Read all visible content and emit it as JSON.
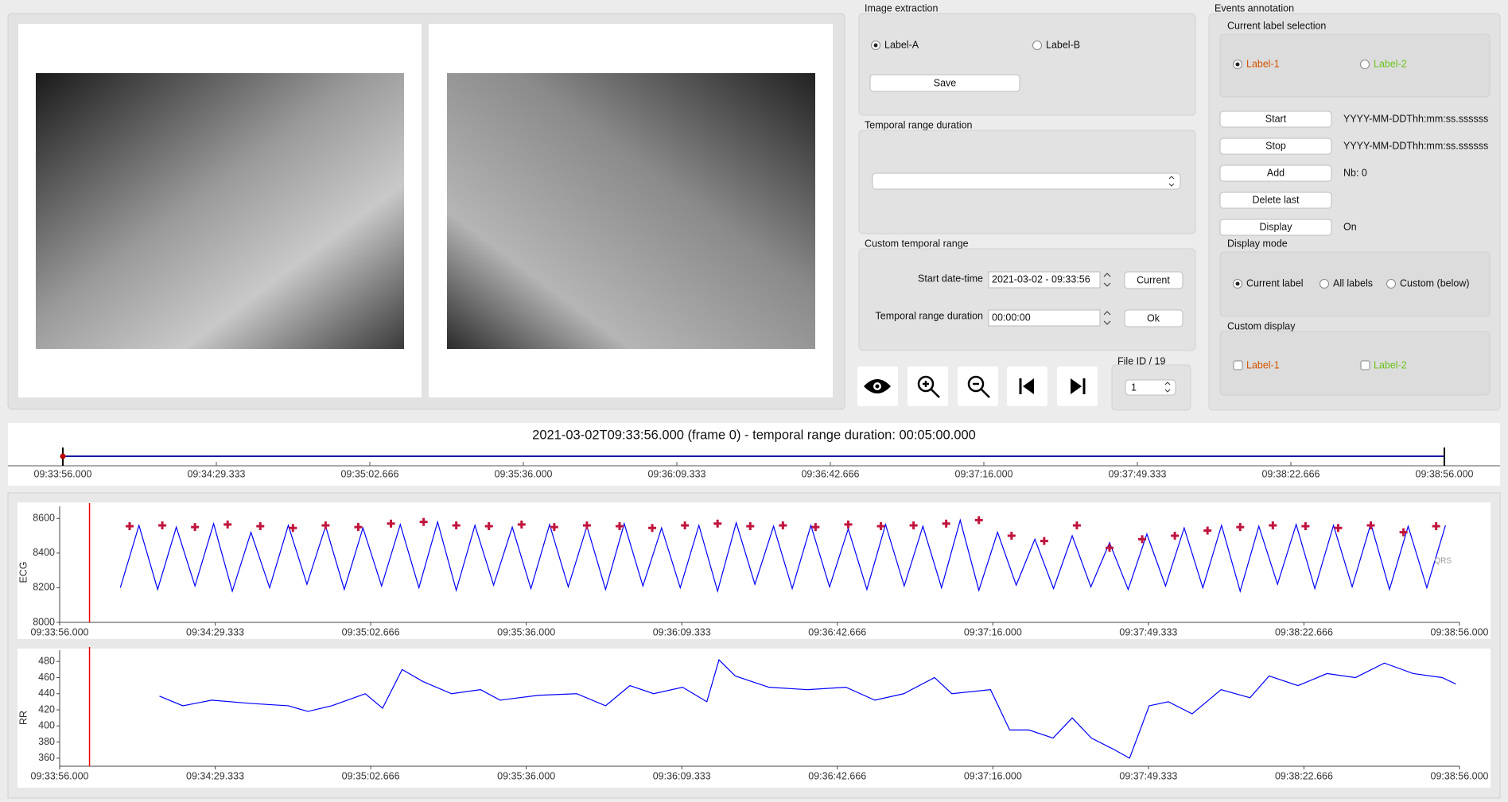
{
  "image_extraction": {
    "title": "Image extraction",
    "options": [
      "Label-A",
      "Label-B"
    ],
    "save": "Save"
  },
  "temporal_range_duration": {
    "title": "Temporal range duration"
  },
  "custom_temporal_range": {
    "title": "Custom temporal range",
    "start_label": "Start date-time",
    "start_value": "2021-03-02 - 09:33:56",
    "current": "Current",
    "duration_label": "Temporal range duration",
    "duration_value": "00:00:00",
    "ok": "Ok"
  },
  "file_id": {
    "label": "File ID / 19",
    "value": "1"
  },
  "events_annotation": {
    "title": "Events annotation",
    "current_label_selection": {
      "title": "Current label selection",
      "options": [
        "Label-1",
        "Label-2"
      ]
    },
    "buttons": [
      "Start",
      "Stop",
      "Add",
      "Delete last",
      "Display"
    ],
    "start_time": "YYYY-MM-DDThh:mm:ss.ssssss",
    "stop_time": "YYYY-MM-DDThh:mm:ss.ssssss",
    "count": "Nb: 0",
    "display_state": "On",
    "display_mode": {
      "title": "Display mode",
      "options": [
        "Current label",
        "All labels",
        "Custom (below)"
      ]
    },
    "custom_display": {
      "title": "Custom display",
      "options": [
        "Label-1",
        "Label-2"
      ]
    }
  },
  "timeline": {
    "title": "2021-03-02T09:33:56.000 (frame 0) - temporal range duration: 00:05:00.000",
    "xlim": [
      0,
      300
    ],
    "xticks": [
      {
        "value": 0,
        "label": "09:33:56.000"
      },
      {
        "value": 33.333,
        "label": "09:34:29.333"
      },
      {
        "value": 66.666,
        "label": "09:35:02.666"
      },
      {
        "value": 100,
        "label": "09:35:36.000"
      },
      {
        "value": 133.333,
        "label": "09:36:09.333"
      },
      {
        "value": 166.666,
        "label": "09:36:42.666"
      },
      {
        "value": 200,
        "label": "09:37:16.000"
      },
      {
        "value": 233.333,
        "label": "09:37:49.333"
      },
      {
        "value": 266.666,
        "label": "09:38:22.666"
      },
      {
        "value": 300,
        "label": "09:38:56.000"
      }
    ]
  },
  "chart_data": [
    {
      "type": "line",
      "ylabel": "ECG",
      "xlim": [
        0,
        300
      ],
      "ylim": [
        8000,
        8670
      ],
      "yticks": [
        8000,
        8200,
        8400,
        8600
      ],
      "cursor": 6.4,
      "xticks": [
        {
          "value": 0,
          "label": "09:33:56.000"
        },
        {
          "value": 33.333,
          "label": "09:34:29.333"
        },
        {
          "value": 66.666,
          "label": "09:35:02.666"
        },
        {
          "value": 100,
          "label": "09:35:36.000"
        },
        {
          "value": 133.333,
          "label": "09:36:09.333"
        },
        {
          "value": 166.666,
          "label": "09:36:42.666"
        },
        {
          "value": 200,
          "label": "09:37:16.000"
        },
        {
          "value": 233.333,
          "label": "09:37:49.333"
        },
        {
          "value": 266.666,
          "label": "09:38:22.666"
        },
        {
          "value": 300,
          "label": "09:38:56.000"
        }
      ],
      "series": [
        {
          "color": "#0000ff",
          "x": [
            13,
            17,
            21,
            25,
            29,
            33,
            37,
            41,
            45,
            49,
            53,
            57,
            61,
            65,
            69,
            73,
            77,
            81,
            85,
            89,
            93,
            97,
            101,
            105,
            109,
            113,
            117,
            121,
            125,
            129,
            133,
            137,
            141,
            145,
            149,
            153,
            157,
            161,
            165,
            169,
            173,
            177,
            181,
            185,
            189,
            193,
            197,
            201,
            205,
            209,
            213,
            217,
            221,
            225,
            229,
            233,
            237,
            241,
            245,
            249,
            253,
            257,
            261,
            265,
            269,
            273,
            277,
            281,
            285,
            289,
            293,
            297
          ],
          "values": [
            8200,
            8560,
            8190,
            8550,
            8210,
            8570,
            8180,
            8520,
            8200,
            8560,
            8220,
            8555,
            8190,
            8545,
            8210,
            8565,
            8200,
            8580,
            8185,
            8560,
            8215,
            8550,
            8195,
            8565,
            8205,
            8555,
            8190,
            8570,
            8210,
            8545,
            8200,
            8560,
            8180,
            8575,
            8220,
            8555,
            8195,
            8560,
            8205,
            8540,
            8190,
            8565,
            8210,
            8555,
            8200,
            8590,
            8185,
            8520,
            8215,
            8480,
            8195,
            8500,
            8205,
            8460,
            8190,
            8510,
            8210,
            8545,
            8200,
            8560,
            8180,
            8555,
            8220,
            8565,
            8195,
            8560,
            8205,
            8570,
            8190,
            8555,
            8200,
            8560
          ]
        },
        {
          "name": "QRS",
          "color": "#c0143c",
          "marker": "plus",
          "x": [
            15,
            22,
            29,
            36,
            43,
            50,
            57,
            64,
            71,
            78,
            85,
            92,
            99,
            106,
            113,
            120,
            127,
            134,
            141,
            148,
            155,
            162,
            169,
            176,
            183,
            190,
            197,
            204,
            211,
            218,
            225,
            232,
            239,
            246,
            253,
            260,
            267,
            274,
            281,
            288,
            295
          ],
          "values": [
            8555,
            8560,
            8550,
            8565,
            8555,
            8545,
            8560,
            8550,
            8570,
            8580,
            8560,
            8555,
            8565,
            8550,
            8560,
            8555,
            8545,
            8560,
            8570,
            8555,
            8560,
            8550,
            8565,
            8555,
            8560,
            8570,
            8590,
            8500,
            8470,
            8560,
            8430,
            8480,
            8500,
            8530,
            8550,
            8560,
            8555,
            8545,
            8560,
            8520,
            8555
          ]
        }
      ]
    },
    {
      "type": "line",
      "ylabel": "RR",
      "xlim": [
        0,
        300
      ],
      "ylim": [
        350,
        494
      ],
      "yticks": [
        360,
        380,
        400,
        420,
        440,
        460,
        480
      ],
      "cursor": 6.4,
      "xticks": [
        {
          "value": 0,
          "label": "09:33:56.000"
        },
        {
          "value": 33.333,
          "label": "09:34:29.333"
        },
        {
          "value": 66.666,
          "label": "09:35:02.666"
        },
        {
          "value": 100,
          "label": "09:35:36.000"
        },
        {
          "value": 133.333,
          "label": "09:36:09.333"
        },
        {
          "value": 166.666,
          "label": "09:36:42.666"
        },
        {
          "value": 200,
          "label": "09:37:16.000"
        },
        {
          "value": 233.333,
          "label": "09:37:49.333"
        },
        {
          "value": 266.666,
          "label": "09:38:22.666"
        },
        {
          "value": 300,
          "label": "09:38:56.000"
        }
      ],
      "series": [
        {
          "color": "#0000ff",
          "x": [
            21.4,
            26.4,
            32.6,
            40.8,
            49,
            53.2,
            58.3,
            65.5,
            69.2,
            73.4,
            77.9,
            84,
            90.2,
            94.4,
            102.6,
            110.8,
            117,
            122.2,
            127.3,
            133.5,
            138.7,
            141.3,
            144.8,
            152,
            160.3,
            168.5,
            174.7,
            180.9,
            187.5,
            191.2,
            199.5,
            203.6,
            207.7,
            212.9,
            217,
            221.1,
            226.2,
            229.3,
            233.5,
            237.6,
            242.7,
            248.9,
            255.1,
            259.2,
            265.4,
            271.6,
            277.7,
            283.9,
            290.1,
            296.3,
            299.2
          ],
          "values": [
            437,
            425,
            432,
            428,
            425,
            418,
            425,
            440,
            422,
            470,
            455,
            440,
            445,
            432,
            438,
            440,
            425,
            450,
            440,
            448,
            430,
            482,
            462,
            448,
            445,
            448,
            432,
            440,
            460,
            440,
            445,
            395,
            395,
            385,
            410,
            385,
            370,
            360,
            425,
            430,
            415,
            445,
            435,
            462,
            450,
            465,
            460,
            478,
            465,
            460,
            452
          ]
        }
      ]
    }
  ]
}
